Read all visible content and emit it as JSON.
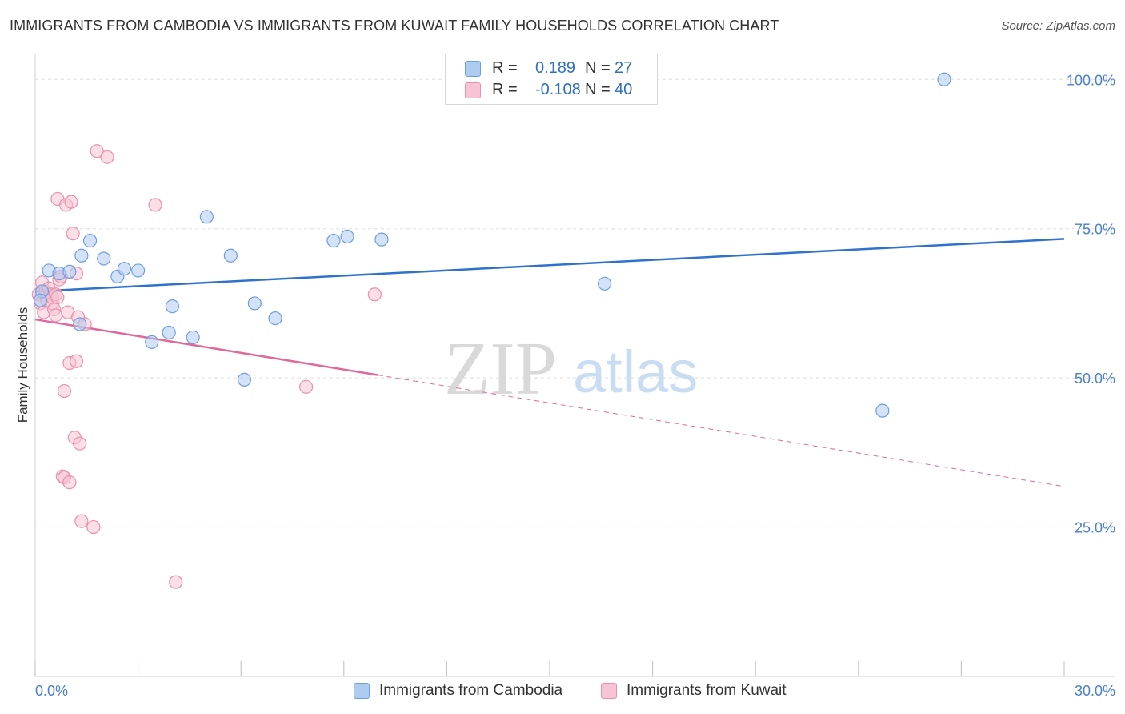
{
  "header": {
    "title": "IMMIGRANTS FROM CAMBODIA VS IMMIGRANTS FROM KUWAIT FAMILY HOUSEHOLDS CORRELATION CHART",
    "source": "Source: ZipAtlas.com"
  },
  "watermark": {
    "zip": "ZIP",
    "atlas": "atlas"
  },
  "legend_top": {
    "r_label": "R =",
    "n_label": "N =",
    "rows": [
      {
        "r": "0.189",
        "n": "27"
      },
      {
        "r": "-0.108",
        "n": "40"
      }
    ]
  },
  "colors": {
    "cambodia_fill": "#aecbf0",
    "cambodia_stroke": "#6d9ee0",
    "cambodia_line": "#2f72cc",
    "kuwait_fill": "#f6c4d4",
    "kuwait_stroke": "#eb8fae",
    "kuwait_line": "#e0699a",
    "axis_label": "#4a7fcb",
    "grid": "#dedede"
  },
  "chart_data": {
    "type": "scatter",
    "title": "IMMIGRANTS FROM CAMBODIA VS IMMIGRANTS FROM KUWAIT FAMILY HOUSEHOLDS CORRELATION CHART",
    "xlabel": "",
    "ylabel": "Family Households",
    "xlim": [
      0,
      30
    ],
    "ylim": [
      0,
      105
    ],
    "x_tick_labels": [
      {
        "value": 0,
        "label": "0.0%"
      },
      {
        "value": 30,
        "label": "30.0%"
      }
    ],
    "y_tick_labels": [
      {
        "value": 25,
        "label": "25.0%"
      },
      {
        "value": 50,
        "label": "50.0%"
      },
      {
        "value": 75,
        "label": "75.0%"
      },
      {
        "value": 100,
        "label": "100.0%"
      }
    ],
    "grid": true,
    "legend_position": "bottom",
    "series": [
      {
        "name": "Immigrants from Cambodia",
        "R": 0.189,
        "N": 27,
        "trend": {
          "x_start": 0,
          "y_start": 64.5,
          "x_end": 30,
          "y_end": 73.3,
          "dashed_from_x": null
        },
        "points": [
          [
            0.2,
            64.5
          ],
          [
            0.4,
            68.0
          ],
          [
            0.7,
            67.5
          ],
          [
            1.0,
            67.8
          ],
          [
            1.3,
            59.0
          ],
          [
            1.35,
            70.5
          ],
          [
            1.6,
            73.0
          ],
          [
            2.0,
            70.0
          ],
          [
            2.4,
            67.0
          ],
          [
            2.6,
            68.3
          ],
          [
            3.0,
            68.0
          ],
          [
            3.4,
            56.0
          ],
          [
            3.9,
            57.6
          ],
          [
            4.0,
            62.0
          ],
          [
            4.6,
            56.8
          ],
          [
            5.0,
            77.0
          ],
          [
            5.7,
            70.5
          ],
          [
            6.1,
            49.7
          ],
          [
            6.4,
            62.5
          ],
          [
            7.0,
            60.0
          ],
          [
            8.7,
            73.0
          ],
          [
            9.1,
            73.7
          ],
          [
            10.1,
            73.2
          ],
          [
            16.6,
            65.8
          ],
          [
            24.7,
            44.5
          ],
          [
            26.5,
            100.0
          ],
          [
            0.15,
            63.0
          ]
        ]
      },
      {
        "name": "Immigrants from Kuwait",
        "R": -0.108,
        "N": 40,
        "trend": {
          "x_start": 0,
          "y_start": 59.8,
          "x_end": 30,
          "y_end": 31.8,
          "dashed_from_x": 10.0
        },
        "points": [
          [
            0.1,
            64.0
          ],
          [
            0.15,
            62.5
          ],
          [
            0.2,
            66.0
          ],
          [
            0.25,
            61.0
          ],
          [
            0.3,
            64.5
          ],
          [
            0.35,
            63.0
          ],
          [
            0.4,
            65.0
          ],
          [
            0.45,
            64.0
          ],
          [
            0.5,
            62.5
          ],
          [
            0.5,
            63.5
          ],
          [
            0.55,
            61.5
          ],
          [
            0.6,
            60.5
          ],
          [
            0.6,
            64.0
          ],
          [
            0.65,
            63.5
          ],
          [
            0.65,
            80.0
          ],
          [
            0.7,
            66.5
          ],
          [
            0.75,
            67.0
          ],
          [
            0.8,
            33.5
          ],
          [
            0.85,
            33.3
          ],
          [
            0.85,
            47.8
          ],
          [
            0.9,
            79.0
          ],
          [
            0.95,
            61.0
          ],
          [
            1.0,
            52.5
          ],
          [
            1.0,
            32.5
          ],
          [
            1.05,
            79.5
          ],
          [
            1.1,
            74.2
          ],
          [
            1.15,
            40.0
          ],
          [
            1.2,
            52.8
          ],
          [
            1.2,
            67.5
          ],
          [
            1.25,
            60.2
          ],
          [
            1.3,
            39.0
          ],
          [
            1.35,
            26.0
          ],
          [
            1.45,
            59.0
          ],
          [
            1.7,
            25.0
          ],
          [
            1.8,
            88.0
          ],
          [
            2.1,
            87.0
          ],
          [
            3.5,
            79.0
          ],
          [
            4.1,
            15.8
          ],
          [
            7.9,
            48.5
          ],
          [
            9.9,
            64.0
          ]
        ]
      }
    ]
  }
}
